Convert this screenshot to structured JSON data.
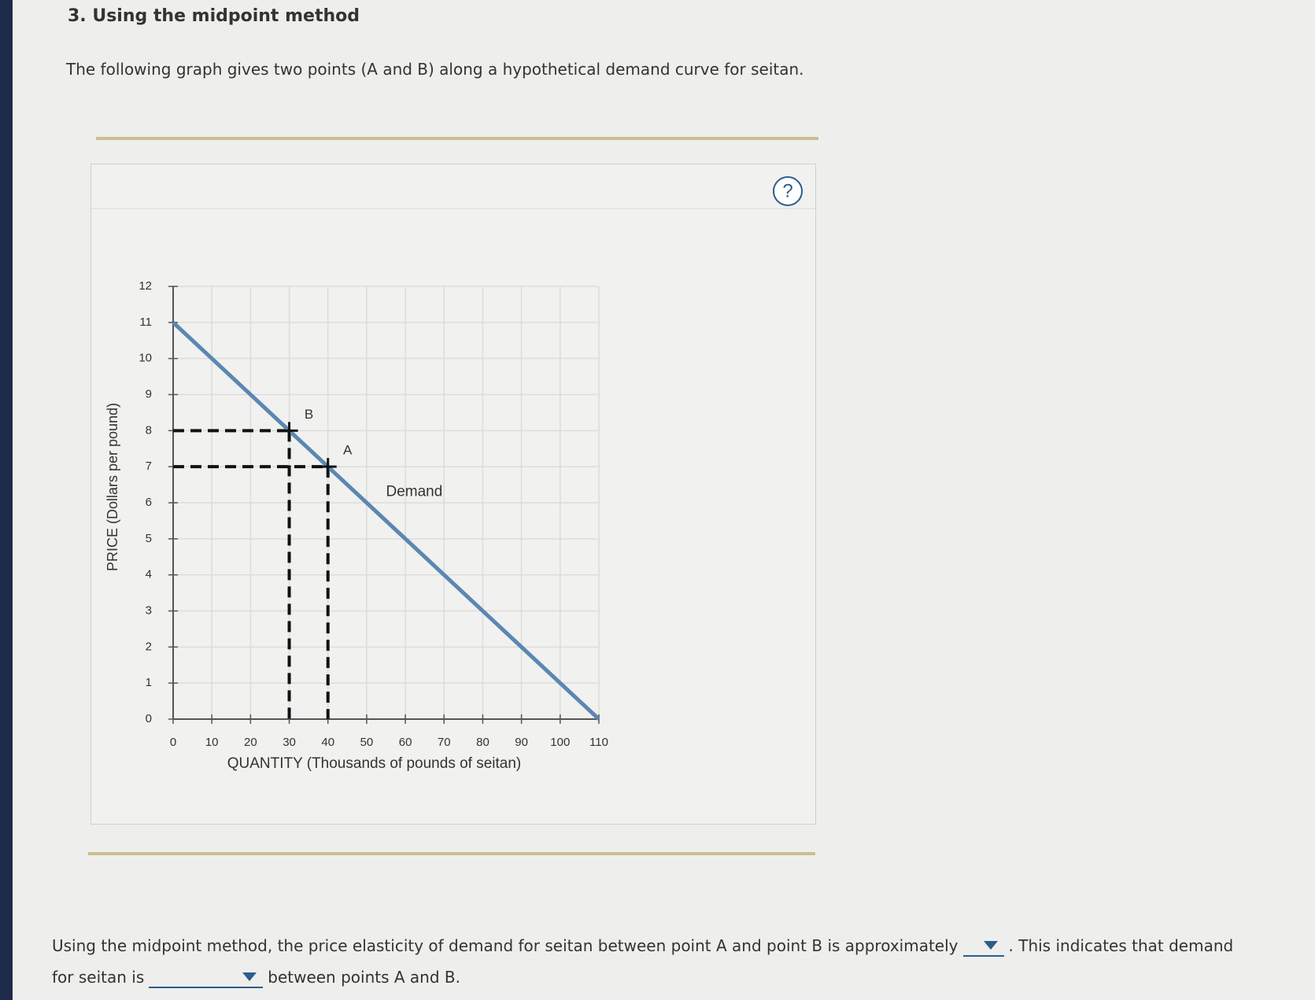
{
  "header": {
    "title": "3. Using the midpoint method",
    "intro": "The following graph gives two points (A and B) along a hypothetical demand curve for seitan."
  },
  "help": "?",
  "chart_data": {
    "type": "line",
    "xlabel": "QUANTITY (Thousands of pounds of seitan)",
    "ylabel": "PRICE (Dollars per pound)",
    "xlim": [
      0,
      110
    ],
    "ylim": [
      0,
      12
    ],
    "xticks": [
      0,
      10,
      20,
      30,
      40,
      50,
      60,
      70,
      80,
      90,
      100,
      110
    ],
    "yticks": [
      0,
      1,
      2,
      3,
      4,
      5,
      6,
      7,
      8,
      9,
      10,
      11,
      12
    ],
    "grid": true,
    "series": [
      {
        "name": "Demand",
        "color": "#5b87b2",
        "x": [
          0,
          110
        ],
        "values": [
          11,
          0
        ]
      }
    ],
    "points": [
      {
        "label": "B",
        "x": 30,
        "y": 8
      },
      {
        "label": "A",
        "x": 40,
        "y": 7
      }
    ]
  },
  "answer_prompt": {
    "part1": "Using the midpoint method, the price elasticity of demand for seitan between point A and point B is approximately",
    "part2": ". This indicates that demand",
    "part3": "for seitan is",
    "part4": "between points A and B."
  }
}
